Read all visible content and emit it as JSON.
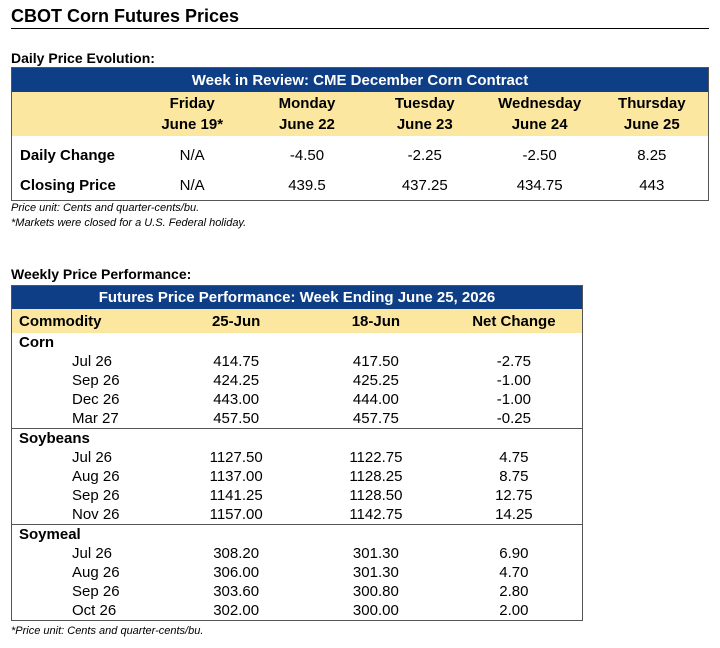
{
  "title": "CBOT Corn Futures Prices",
  "daily": {
    "section_label": "Daily Price Evolution:",
    "banner": "Week in Review: CME December Corn Contract",
    "days": [
      {
        "day": "Friday",
        "date": "June 19*"
      },
      {
        "day": "Monday",
        "date": "June 22"
      },
      {
        "day": "Tuesday",
        "date": "June 23"
      },
      {
        "day": "Wednesday",
        "date": "June 24"
      },
      {
        "day": "Thursday",
        "date": "June 25"
      }
    ],
    "rows": [
      {
        "label": "Daily Change",
        "values": [
          "N/A",
          "-4.50",
          "-2.25",
          "-2.50",
          "8.25"
        ]
      },
      {
        "label": "Closing Price",
        "values": [
          "N/A",
          "439.5",
          "437.25",
          "434.75",
          "443"
        ]
      }
    ],
    "notes": [
      "Price unit: Cents and quarter-cents/bu.",
      "*Markets were closed for a U.S. Federal holiday."
    ]
  },
  "weekly": {
    "section_label": "Weekly Price Performance:",
    "banner": "Futures Price Performance: Week Ending June 25, 2026",
    "headers": [
      "Commodity",
      "25-Jun",
      "18-Jun",
      "Net Change"
    ],
    "groups": [
      {
        "name": "Corn",
        "rows": [
          [
            "Jul 26",
            "414.75",
            "417.50",
            "-2.75"
          ],
          [
            "Sep 26",
            "424.25",
            "425.25",
            "-1.00"
          ],
          [
            "Dec 26",
            "443.00",
            "444.00",
            "-1.00"
          ],
          [
            "Mar 27",
            "457.50",
            "457.75",
            "-0.25"
          ]
        ]
      },
      {
        "name": "Soybeans",
        "rows": [
          [
            "Jul 26",
            "1127.50",
            "1122.75",
            "4.75"
          ],
          [
            "Aug 26",
            "1137.00",
            "1128.25",
            "8.75"
          ],
          [
            "Sep 26",
            "1141.25",
            "1128.50",
            "12.75"
          ],
          [
            "Nov 26",
            "1157.00",
            "1142.75",
            "14.25"
          ]
        ]
      },
      {
        "name": "Soymeal",
        "rows": [
          [
            "Jul 26",
            "308.20",
            "301.30",
            "6.90"
          ],
          [
            "Aug 26",
            "306.00",
            "301.30",
            "4.70"
          ],
          [
            "Sep 26",
            "303.60",
            "300.80",
            "2.80"
          ],
          [
            "Oct 26",
            "302.00",
            "300.00",
            "2.00"
          ]
        ]
      }
    ],
    "note": "*Price unit: Cents and quarter-cents/bu."
  },
  "colors": {
    "banner_bg": "#0e3f86",
    "header_bg": "#fbe7a0"
  }
}
